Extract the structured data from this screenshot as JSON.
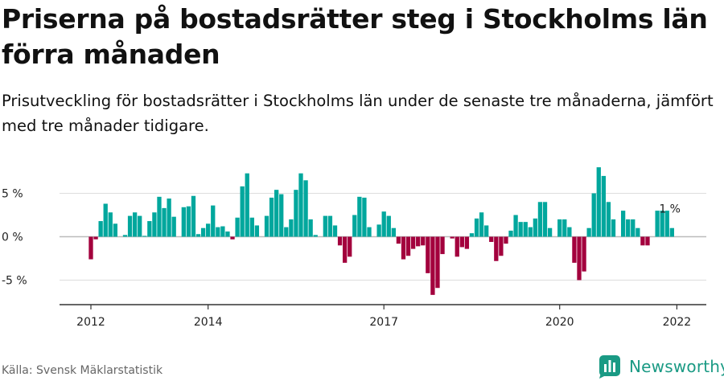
{
  "title": "Priserna på bostadsrätter steg i Stockholms län förra månaden",
  "subtitle": "Prisutveckling för bostadsrätter i Stockholms län under de senaste tre månaderna, jämfört med tre månader tidigare.",
  "source": "Källa: Svensk Mäklarstatistik",
  "brand": "Newsworthy",
  "colors": {
    "positive": "#00a79d",
    "negative": "#a3003d",
    "grid": "#dddddd",
    "axis": "#333333"
  },
  "chart_data": {
    "type": "bar",
    "unit": "%",
    "x_start": {
      "year": 2012,
      "month": 1
    },
    "x_ticks": [
      "2012",
      "2014",
      "2017",
      "2020",
      "2022"
    ],
    "tick_months": [
      0,
      24,
      60,
      96,
      120
    ],
    "ylim": [
      -7.5,
      9.5
    ],
    "yticks": [
      5,
      0,
      -5
    ],
    "ytick_labels": [
      "5 %",
      "0 %",
      "-5 %"
    ],
    "last_value_label": "1 %",
    "values": [
      -2.6,
      -0.3,
      1.8,
      3.8,
      2.8,
      1.5,
      0.0,
      0.2,
      2.4,
      2.8,
      2.4,
      0.1,
      1.8,
      2.8,
      4.6,
      3.3,
      4.4,
      2.3,
      0.0,
      3.4,
      3.5,
      4.7,
      0.3,
      1.0,
      1.5,
      3.6,
      1.1,
      1.2,
      0.6,
      -0.3,
      2.2,
      5.8,
      7.3,
      2.2,
      1.3,
      0.0,
      2.4,
      4.5,
      5.4,
      4.9,
      1.1,
      2.0,
      5.4,
      7.3,
      6.5,
      2.0,
      0.2,
      0.0,
      2.4,
      2.4,
      1.3,
      -1.0,
      -3.0,
      -2.3,
      2.5,
      4.6,
      4.5,
      1.1,
      0.0,
      1.4,
      2.9,
      2.4,
      1.0,
      -0.8,
      -2.6,
      -2.2,
      -1.4,
      -1.1,
      -1.0,
      -4.2,
      -6.7,
      -5.9,
      -2.0,
      0.0,
      -0.2,
      -2.3,
      -1.2,
      -1.4,
      0.4,
      2.1,
      2.8,
      1.3,
      -0.6,
      -2.8,
      -2.2,
      -0.8,
      0.7,
      2.5,
      1.7,
      1.7,
      1.1,
      2.1,
      4.0,
      4.0,
      1.0,
      0.0,
      2.0,
      2.0,
      1.1,
      -3.0,
      -5.0,
      -4.0,
      1.0,
      5.0,
      8.0,
      7.0,
      4.0,
      2.0,
      0.0,
      3.0,
      2.0,
      2.0,
      1.0,
      -1.0,
      -1.0,
      0.0,
      3.0,
      3.0,
      3.0,
      1.0
    ]
  }
}
